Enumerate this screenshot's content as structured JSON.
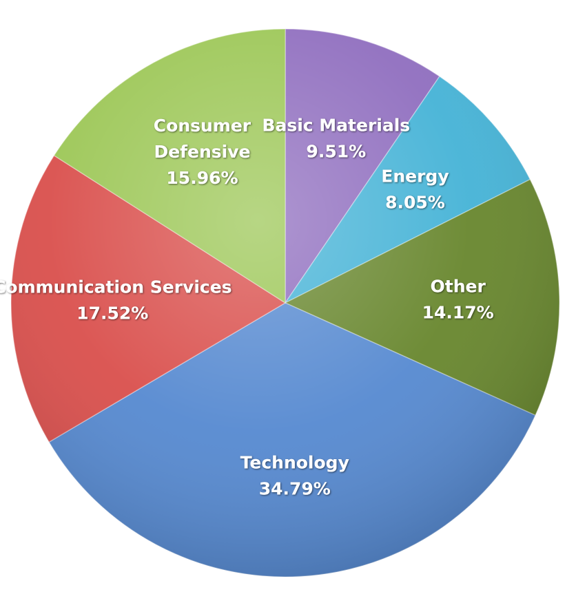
{
  "chart_data": {
    "type": "pie",
    "title": "",
    "slices": [
      {
        "name": "Basic Materials",
        "value": 9.51,
        "label": "9.51%",
        "color": "#8E6CBE"
      },
      {
        "name": "Energy",
        "value": 8.05,
        "label": "8.05%",
        "color": "#43B2D6"
      },
      {
        "name": "Other",
        "value": 14.17,
        "label": "14.17%",
        "color": "#66852B"
      },
      {
        "name": "Technology",
        "value": 34.79,
        "label": "34.79%",
        "color": "#5488D0"
      },
      {
        "name": "Communication Services",
        "value": 17.52,
        "label": "17.52%",
        "color": "#D94D4A"
      },
      {
        "name": "Consumer Defensive",
        "name_lines": [
          "Consumer",
          "Defensive"
        ],
        "value": 15.96,
        "label": "15.96%",
        "color": "#9BC654"
      }
    ],
    "start_angle": "12 o'clock",
    "direction": "clockwise",
    "legend": "none"
  }
}
